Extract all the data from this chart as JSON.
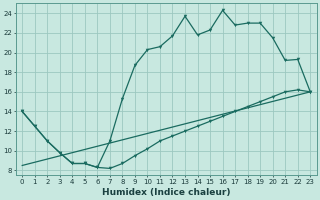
{
  "xlabel": "Humidex (Indice chaleur)",
  "xlim": [
    -0.5,
    23.5
  ],
  "ylim": [
    7.5,
    25.0
  ],
  "yticks": [
    8,
    10,
    12,
    14,
    16,
    18,
    20,
    22,
    24
  ],
  "xticks": [
    0,
    1,
    2,
    3,
    4,
    5,
    6,
    7,
    8,
    9,
    10,
    11,
    12,
    13,
    14,
    15,
    16,
    17,
    18,
    19,
    20,
    21,
    22,
    23
  ],
  "background_color": "#c8e8e0",
  "grid_color": "#9cc8c0",
  "line_color": "#1a6b60",
  "line1_x": [
    0,
    1,
    2,
    3,
    4,
    5,
    6,
    7,
    8,
    9,
    10,
    11,
    12,
    13,
    14,
    15,
    16,
    17,
    18,
    19,
    20,
    21,
    22,
    23
  ],
  "line1_y": [
    14.0,
    12.5,
    11.0,
    9.8,
    8.7,
    8.7,
    8.3,
    8.2,
    8.7,
    9.5,
    10.2,
    11.0,
    11.5,
    12.0,
    12.5,
    13.0,
    13.5,
    14.0,
    14.5,
    15.0,
    15.5,
    16.0,
    16.2,
    16.0
  ],
  "line2_x": [
    0,
    1,
    2,
    3,
    4,
    5,
    6,
    7,
    8,
    9,
    10,
    11,
    12,
    13,
    14,
    15,
    16,
    17,
    18,
    19,
    20,
    21,
    22,
    23
  ],
  "line2_y": [
    14.0,
    12.5,
    11.0,
    9.8,
    8.7,
    8.7,
    8.3,
    11.0,
    15.3,
    18.7,
    20.3,
    20.6,
    21.7,
    23.7,
    21.8,
    22.3,
    24.3,
    22.8,
    23.0,
    23.0,
    21.5,
    19.2,
    19.3,
    16.0
  ],
  "line3_x": [
    0,
    23
  ],
  "line3_y": [
    8.5,
    16.0
  ]
}
